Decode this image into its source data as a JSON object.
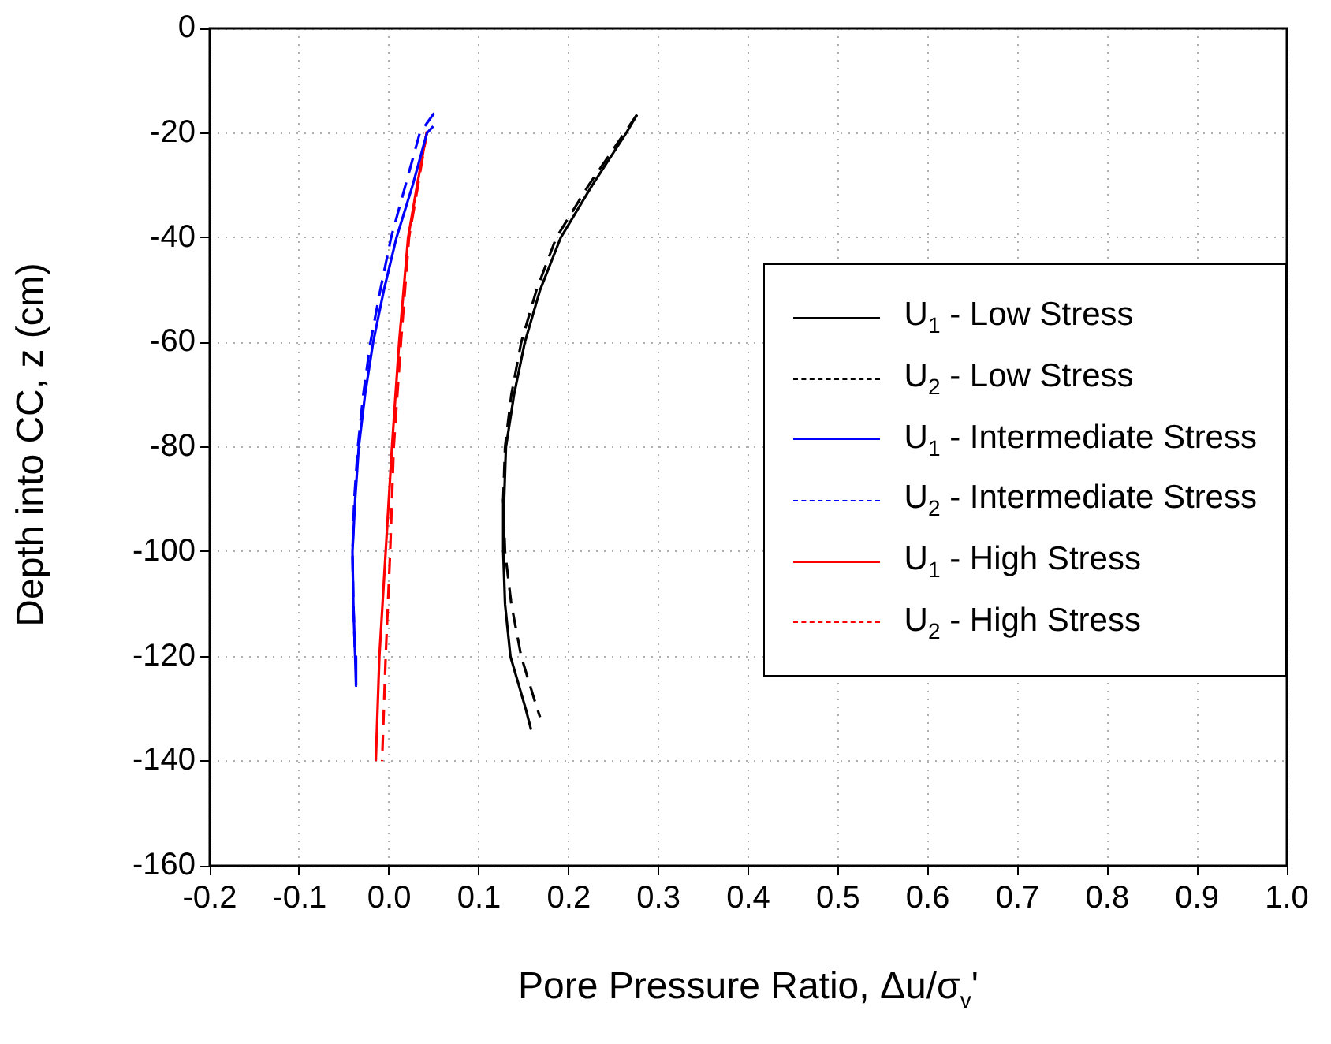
{
  "chart_data": {
    "type": "line",
    "xlabel": "Pore Pressure Ratio, Δu/σ$_{v}$'",
    "ylabel": "Depth into CC, z (cm)",
    "xlim": [
      -0.2,
      1.0
    ],
    "xticks": [
      -0.2,
      -0.1,
      {
        "value": 0,
        "label": "0.0"
      },
      0.1,
      0.2,
      0.3,
      0.4,
      0.5,
      0.6,
      0.7,
      0.8,
      0.9,
      {
        "value": 1,
        "label": "1.0"
      }
    ],
    "ylim": [
      -160,
      0
    ],
    "yticks": [
      -160,
      -140,
      -120,
      -100,
      -80,
      -60,
      -40,
      -20,
      0
    ],
    "grid": true,
    "legend": "right",
    "marker": "none",
    "series": [
      {
        "name": "U$_{1}$ - Low Stress",
        "color": "#000000",
        "line_style": "solid",
        "x": [
          0.276,
          0.264,
          0.226,
          0.191,
          0.168,
          0.151,
          0.139,
          0.13,
          0.128,
          0.127,
          0.129,
          0.135,
          0.152,
          0.158
        ],
        "values": [
          -16.5,
          -20,
          -30,
          -40,
          -50,
          -60,
          -70,
          -80,
          -90,
          -100,
          -110,
          -120,
          -130,
          -134
        ]
      },
      {
        "name": "U$_{2}$ - Low Stress",
        "color": "#000000",
        "line_style": "dashed",
        "x": [
          0.276,
          0.262,
          0.222,
          0.186,
          0.164,
          0.147,
          0.136,
          0.129,
          0.127,
          0.129,
          0.136,
          0.147,
          0.163,
          0.168
        ],
        "values": [
          -16.5,
          -20,
          -30,
          -40,
          -50,
          -60,
          -70,
          -80,
          -90,
          -100,
          -110,
          -120,
          -129,
          -131.6
        ]
      },
      {
        "name": "U$_{1}$ - Intermediate Stress",
        "color": "#0000ff",
        "line_style": "solid",
        "x": [
          0.049,
          0.042,
          0.026,
          0.008,
          -0.006,
          -0.018,
          -0.027,
          -0.034,
          -0.038,
          -0.041,
          -0.04,
          -0.038,
          -0.037
        ],
        "values": [
          -18.7,
          -20,
          -30,
          -40,
          -50,
          -60,
          -70,
          -80,
          -90,
          -100,
          -110,
          -120,
          -125.6
        ]
      },
      {
        "name": "U$_{2}$ - Intermediate Stress",
        "color": "#0000ff",
        "line_style": "dashed",
        "x": [
          0.05,
          0.034,
          0.018,
          0.002,
          -0.01,
          -0.021,
          -0.029,
          -0.035,
          -0.039,
          -0.041,
          -0.04,
          -0.038
        ],
        "values": [
          -16.2,
          -20,
          -30,
          -40,
          -50,
          -60,
          -70,
          -80,
          -90,
          -100,
          -110,
          -120
        ]
      },
      {
        "name": "U$_{1}$ - High Stress",
        "color": "#ff0000",
        "line_style": "solid",
        "x": [
          0.042,
          0.031,
          0.021,
          0.011,
          0.003,
          -0.004,
          -0.011,
          -0.015
        ],
        "values": [
          -19.7,
          -30,
          -40,
          -60,
          -80,
          -100,
          -120,
          -140
        ]
      },
      {
        "name": "U$_{2}$ - High Stress",
        "color": "#ff0000",
        "line_style": "dashed",
        "x": [
          0.042,
          0.032,
          0.022,
          0.013,
          0.005,
          0.001,
          -0.004,
          -0.008
        ],
        "values": [
          -19.7,
          -30,
          -40,
          -60,
          -80,
          -100,
          -120,
          -140
        ]
      }
    ]
  }
}
